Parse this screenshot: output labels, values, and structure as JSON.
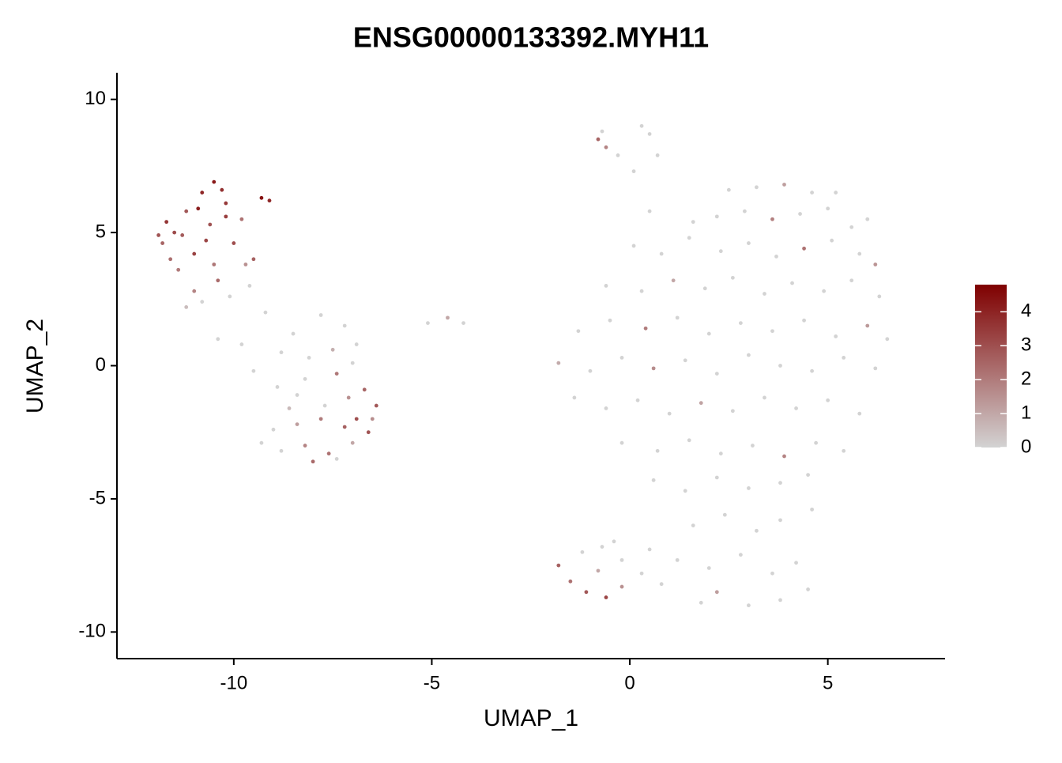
{
  "chart_data": {
    "type": "scatter",
    "title": "ENSG00000133392.MYH11",
    "xlabel": "UMAP_1",
    "ylabel": "UMAP_2",
    "xlim": [
      -12.95,
      7.96
    ],
    "xticks": [
      -10,
      -5,
      0,
      5
    ],
    "ylim": [
      -11,
      11
    ],
    "yticks": [
      -10,
      -5,
      0,
      5,
      10
    ],
    "colorscale": {
      "low": "#d3d3d3",
      "high": "#7f0000",
      "lim": [
        0,
        4.8
      ],
      "ticks": [
        0,
        1,
        2,
        3,
        4
      ]
    },
    "x": [
      -11.5,
      -11.2,
      -10.8,
      -10.5,
      -11.8,
      -11.0,
      -10.6,
      -10.2,
      -9.8,
      -9.5,
      -11.4,
      -11.0,
      -10.4,
      -10.0,
      -9.7,
      -11.7,
      -10.9,
      -10.3,
      -9.3,
      -9.1,
      -11.3,
      -10.7,
      -11.6,
      -10.1,
      -10.8,
      -11.2,
      -9.6,
      -10.5,
      -11.9,
      -10.2,
      -9.2,
      -8.5,
      -7.8,
      -7.2,
      -6.9,
      -8.8,
      -8.1,
      -7.5,
      -9.5,
      -8.9,
      -8.2,
      -7.4,
      -6.7,
      -6.4,
      -7.1,
      -8.6,
      -9.0,
      -8.4,
      -7.8,
      -7.2,
      -6.6,
      -8.8,
      -8.2,
      -7.6,
      -7.0,
      -8.0,
      -9.3,
      -7.4,
      -6.5,
      -9.8,
      -10.4,
      -7.0,
      -8.4,
      -7.7,
      -6.9,
      -5.1,
      -4.6,
      -4.2,
      -0.7,
      -0.8,
      -0.6,
      -0.3,
      0.1,
      0.3,
      0.5,
      0.7,
      2.5,
      3.2,
      3.9,
      4.6,
      5.2,
      0.5,
      1.6,
      2.2,
      2.9,
      3.6,
      4.3,
      5.0,
      5.6,
      6.0,
      0.1,
      0.8,
      1.5,
      2.3,
      3.0,
      3.7,
      4.4,
      5.1,
      5.8,
      6.2,
      -0.6,
      0.3,
      1.1,
      1.9,
      2.6,
      3.4,
      4.1,
      4.9,
      5.6,
      6.3,
      -1.3,
      -0.5,
      0.4,
      1.2,
      2.0,
      2.8,
      3.6,
      4.4,
      5.2,
      6.0,
      6.5,
      -1.8,
      -1.0,
      -0.2,
      0.6,
      1.4,
      2.2,
      3.0,
      3.8,
      4.6,
      5.4,
      6.2,
      -1.4,
      -0.6,
      0.2,
      1.0,
      1.8,
      2.6,
      3.4,
      4.2,
      5.0,
      5.8,
      -0.2,
      0.7,
      1.5,
      2.3,
      3.1,
      3.9,
      4.7,
      5.4,
      0.6,
      1.4,
      2.2,
      3.0,
      3.8,
      4.5,
      1.6,
      2.4,
      3.2,
      3.8,
      4.6,
      1.2,
      2.0,
      2.8,
      3.6,
      4.2,
      2.2,
      3.0,
      3.8,
      1.8,
      4.5,
      -1.8,
      -1.5,
      -1.1,
      -0.6,
      -0.2,
      -1.2,
      -0.7,
      -0.2,
      0.3,
      0.8,
      -0.8,
      -0.4,
      0.5
    ],
    "y": [
      5.0,
      5.8,
      6.5,
      6.9,
      4.6,
      4.2,
      5.3,
      6.1,
      5.5,
      4.0,
      3.6,
      2.8,
      3.2,
      4.6,
      3.8,
      5.4,
      5.9,
      6.6,
      6.3,
      6.2,
      4.9,
      4.7,
      4.0,
      2.6,
      2.4,
      2.2,
      3.0,
      3.8,
      4.9,
      5.6,
      2.0,
      1.2,
      1.9,
      1.5,
      0.8,
      0.5,
      0.3,
      0.6,
      -0.2,
      -0.8,
      -0.5,
      -0.3,
      -0.9,
      -1.5,
      -1.2,
      -1.6,
      -2.4,
      -2.2,
      -2.0,
      -2.3,
      -2.5,
      -3.2,
      -3.0,
      -3.3,
      -2.9,
      -3.6,
      -2.9,
      -3.5,
      -2.0,
      0.8,
      1.0,
      0.1,
      -1.1,
      -1.5,
      -2.0,
      1.6,
      1.8,
      1.6,
      8.8,
      8.5,
      8.2,
      7.9,
      7.3,
      9.0,
      8.7,
      7.9,
      6.6,
      6.7,
      6.8,
      6.5,
      6.5,
      5.8,
      5.4,
      5.6,
      5.8,
      5.5,
      5.7,
      5.9,
      5.2,
      5.5,
      4.5,
      4.2,
      4.8,
      4.3,
      4.6,
      4.1,
      4.4,
      4.7,
      4.2,
      3.8,
      3.0,
      2.8,
      3.2,
      2.9,
      3.3,
      2.7,
      3.1,
      2.8,
      3.2,
      2.6,
      1.3,
      1.7,
      1.4,
      1.8,
      1.2,
      1.6,
      1.3,
      1.7,
      1.1,
      1.5,
      1.0,
      0.1,
      -0.2,
      0.3,
      -0.1,
      0.2,
      -0.3,
      0.4,
      0.0,
      -0.2,
      0.3,
      -0.1,
      -1.2,
      -1.6,
      -1.3,
      -1.8,
      -1.4,
      -1.7,
      -1.2,
      -1.6,
      -1.3,
      -1.8,
      -2.9,
      -3.2,
      -2.8,
      -3.3,
      -3.0,
      -3.4,
      -2.9,
      -3.2,
      -4.3,
      -4.7,
      -4.2,
      -4.6,
      -4.4,
      -4.1,
      -6.0,
      -5.6,
      -6.2,
      -5.8,
      -5.4,
      -7.3,
      -7.6,
      -7.1,
      -7.8,
      -7.4,
      -8.5,
      -9.0,
      -8.8,
      -8.9,
      -8.4,
      -7.5,
      -8.1,
      -8.5,
      -8.7,
      -8.3,
      -7.0,
      -6.8,
      -7.3,
      -7.8,
      -8.2,
      -7.7,
      -6.6,
      -6.9
    ],
    "values": [
      3.1,
      2.8,
      3.9,
      4.2,
      2.5,
      3.3,
      2.9,
      3.5,
      2.2,
      2.6,
      2.0,
      1.8,
      2.4,
      3.0,
      1.5,
      3.6,
      4.1,
      3.7,
      4.4,
      3.9,
      2.7,
      3.2,
      2.3,
      0,
      0,
      0.5,
      0,
      2.1,
      2.9,
      3.4,
      0,
      0,
      0,
      0,
      0,
      0,
      0,
      0.8,
      0,
      0,
      0,
      2.1,
      2.5,
      2.8,
      1.5,
      0.6,
      0,
      1.2,
      2.0,
      2.6,
      2.9,
      0,
      1.8,
      2.2,
      1.0,
      2.4,
      0,
      0,
      1.6,
      0,
      0,
      0,
      0,
      0,
      3.0,
      0,
      1.0,
      0,
      0,
      2.5,
      1.8,
      0,
      0,
      0,
      0,
      0,
      0,
      0,
      1.2,
      0,
      0,
      0,
      0,
      0,
      0,
      1.9,
      0,
      0,
      0,
      0,
      0,
      0,
      0,
      0,
      0,
      0,
      2.2,
      0,
      0,
      1.4,
      0,
      0,
      1.0,
      0,
      0,
      0,
      0,
      0,
      0,
      0,
      0,
      0,
      2.0,
      0,
      0,
      0,
      0,
      0,
      0,
      1.3,
      0,
      0.9,
      0,
      0,
      1.6,
      0,
      0,
      0,
      0,
      0,
      0,
      0,
      0,
      0,
      0,
      0,
      1.1,
      0,
      0,
      0,
      0,
      0,
      0,
      0,
      0,
      0,
      0,
      1.8,
      0,
      0,
      0,
      0,
      0,
      0,
      0,
      0,
      0,
      0,
      0,
      0,
      0,
      0,
      0,
      0,
      0,
      0,
      1.2,
      0,
      0,
      0,
      0,
      2.6,
      2.2,
      2.8,
      3.2,
      1.5,
      0,
      0,
      0,
      0,
      0,
      1.0,
      0,
      0
    ]
  }
}
